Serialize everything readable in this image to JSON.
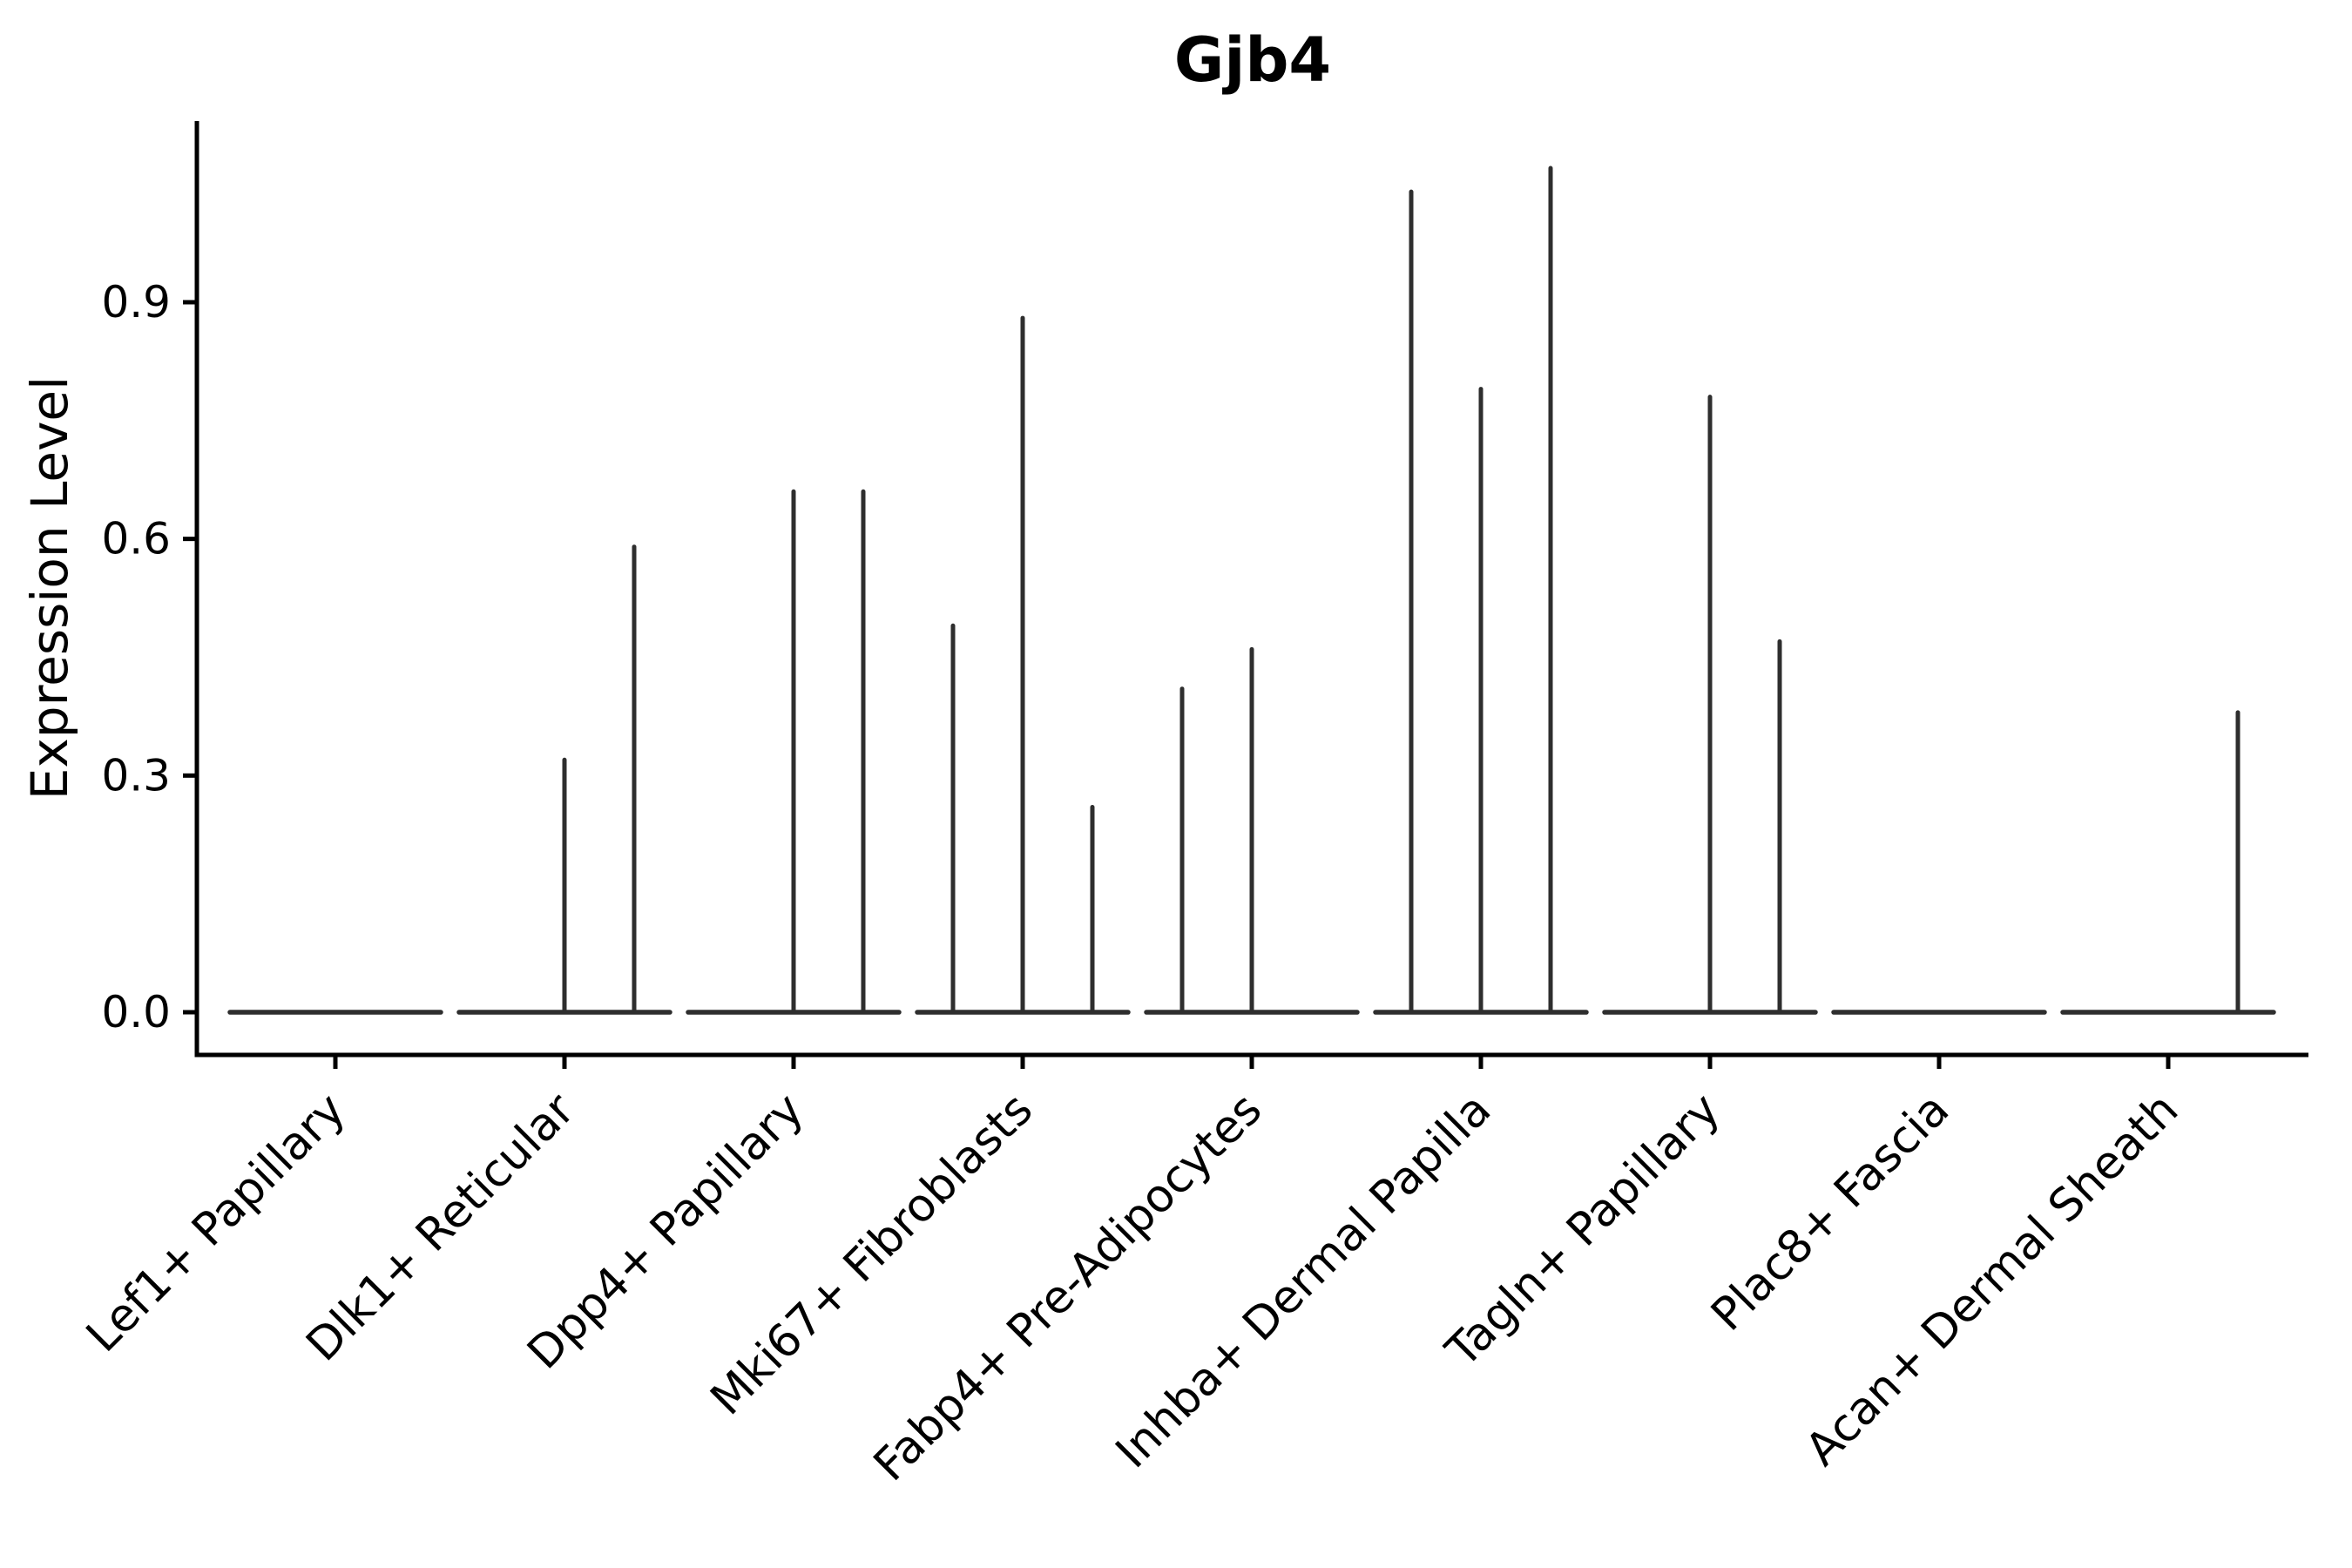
{
  "chart_data": {
    "type": "violin",
    "title": "Gjb4",
    "ylabel": "Expression Level",
    "xlabel": "",
    "y_tick_labels": [
      "0.0",
      "0.3",
      "0.6",
      "0.9"
    ],
    "y_tick_values": [
      0.0,
      0.3,
      0.6,
      0.9
    ],
    "ylim": [
      -0.054,
      1.13
    ],
    "grid": false,
    "legend": "none",
    "violins_per_category": 3,
    "categories": [
      "Lef1+ Papillary",
      "Dlk1+ Reticular",
      "Dpp4+ Papillary",
      "Mki67+ Fibroblasts",
      "Fabp4+ Pre-Adipocytes",
      "Inhba+ Dermal Papilla",
      "Tagln+ Papillary",
      "Plac8+ Fascia",
      "Acan+ Dermal Sheath"
    ],
    "series": [
      {
        "category": "Lef1+ Papillary",
        "spike_maxima": [
          0,
          0,
          0
        ]
      },
      {
        "category": "Dlk1+ Reticular",
        "spike_maxima": [
          0,
          0.32,
          0.59
        ]
      },
      {
        "category": "Dpp4+ Papillary",
        "spike_maxima": [
          0,
          0.66,
          0.66
        ]
      },
      {
        "category": "Mki67+ Fibroblasts",
        "spike_maxima": [
          0.49,
          0.88,
          0.26
        ]
      },
      {
        "category": "Fabp4+ Pre-Adipocytes",
        "spike_maxima": [
          0.41,
          0.46,
          0
        ]
      },
      {
        "category": "Inhba+ Dermal Papilla",
        "spike_maxima": [
          1.04,
          0.79,
          1.07
        ]
      },
      {
        "category": "Tagln+ Papillary",
        "spike_maxima": [
          0,
          0.78,
          0.47
        ]
      },
      {
        "category": "Plac8+ Fascia",
        "spike_maxima": [
          0,
          0,
          0
        ]
      },
      {
        "category": "Acan+ Dermal Sheath",
        "spike_maxima": [
          0,
          0,
          0.38
        ]
      }
    ],
    "colors": {
      "violin": "#2e2e2e",
      "axis": "#000000",
      "text": "#000000",
      "background": "#ffffff"
    }
  }
}
